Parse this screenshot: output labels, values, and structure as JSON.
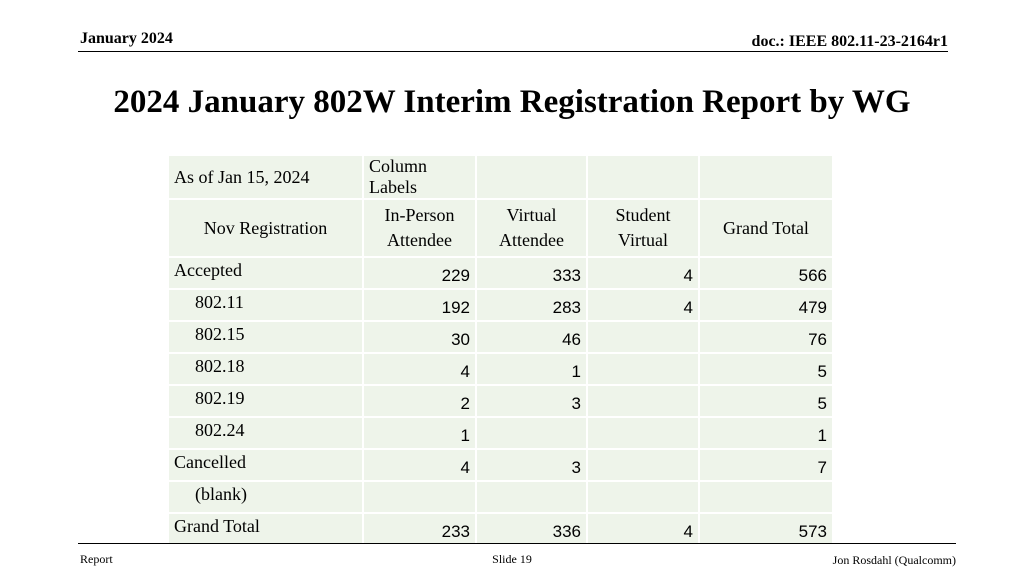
{
  "header": {
    "date": "January 2024",
    "doc_id": "doc.: IEEE 802.11-23-2164r1"
  },
  "title": "2024 January 802W Interim Registration Report by WG",
  "table": {
    "as_of": "As of Jan 15, 2024",
    "column_labels": "Column Labels",
    "row_header": "Nov Registration",
    "columns": [
      "In-Person Attendee",
      "Virtual Attendee",
      "Student Virtual",
      "Grand Total"
    ],
    "rows": [
      {
        "label": "Accepted",
        "values": [
          "229",
          "333",
          "4",
          "566"
        ]
      },
      {
        "label": "802.11",
        "values": [
          "192",
          "283",
          "4",
          "479"
        ]
      },
      {
        "label": "802.15",
        "values": [
          "30",
          "46",
          "",
          "76"
        ]
      },
      {
        "label": "802.18",
        "values": [
          "4",
          "1",
          "",
          "5"
        ]
      },
      {
        "label": "802.19",
        "values": [
          "2",
          "3",
          "",
          "5"
        ]
      },
      {
        "label": "802.24",
        "values": [
          "1",
          "",
          "",
          "1"
        ]
      },
      {
        "label": "Cancelled",
        "values": [
          "4",
          "3",
          "",
          "7"
        ]
      },
      {
        "label": "(blank)",
        "values": [
          "",
          "",
          "",
          ""
        ]
      },
      {
        "label": "Grand Total",
        "values": [
          "233",
          "336",
          "4",
          "573"
        ]
      }
    ]
  },
  "footer": {
    "left": "Report",
    "center": "Slide 19",
    "right": "Jon Rosdahl (Qualcomm)"
  }
}
